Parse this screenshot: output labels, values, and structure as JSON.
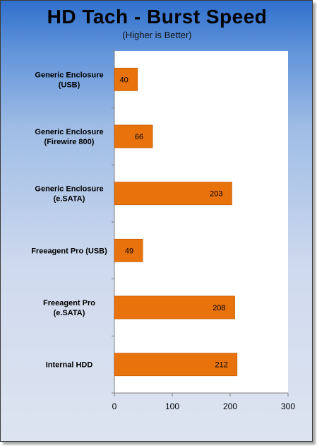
{
  "chart_data": {
    "type": "bar",
    "orientation": "horizontal",
    "title": "HD Tach - Burst Speed",
    "subtitle": "(Higher is Better)",
    "categories": [
      [
        "Generic Enclosure",
        "(USB)"
      ],
      [
        "Generic Enclosure",
        "(Firewire 800)"
      ],
      [
        "Generic Enclosure",
        "(e.SATA)"
      ],
      [
        "Freeagent Pro (USB)"
      ],
      [
        "Freeagent Pro",
        "(e.SATA)"
      ],
      [
        "Internal HDD"
      ]
    ],
    "values": [
      40,
      66,
      203,
      49,
      208,
      212
    ],
    "xlim": [
      0,
      300
    ],
    "xticks": [
      0,
      100,
      200,
      300
    ],
    "xlabel": "",
    "ylabel": "",
    "grid": false,
    "legend": "none",
    "bar_color": "#e8720c"
  }
}
